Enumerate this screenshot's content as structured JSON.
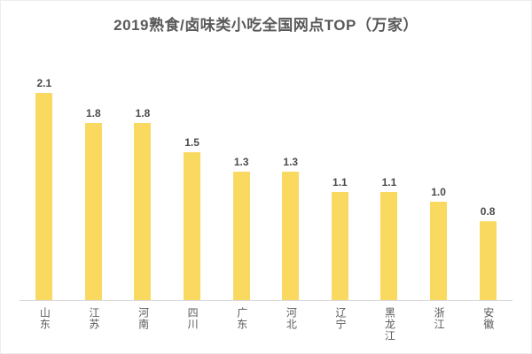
{
  "title": "2019熟食/卤味类小吃全国网点TOP（万家）",
  "colors": {
    "bar": "#FAD961",
    "title_text": "#595959",
    "value_label_text": "#4A4A4A",
    "category_label_text": "#595959",
    "axis_line": "#D9D9D9",
    "frame_border": "#EDEDED",
    "background": "#FFFFFF"
  },
  "chart_data": {
    "type": "bar",
    "title": "2019熟食/卤味类小吃全国网点TOP（万家）",
    "categories": [
      "山东",
      "江苏",
      "河南",
      "四川",
      "广东",
      "河北",
      "辽宁",
      "黑龙江",
      "浙江",
      "安徽"
    ],
    "values": [
      2.1,
      1.8,
      1.8,
      1.5,
      1.3,
      1.3,
      1.1,
      1.1,
      1.0,
      0.8
    ],
    "value_labels": [
      "2.1",
      "1.8",
      "1.8",
      "1.5",
      "1.3",
      "1.3",
      "1.1",
      "1.1",
      "1.0",
      "0.8"
    ],
    "xlabel": "",
    "ylabel": "",
    "ylim": [
      0,
      2.5
    ],
    "grid": false,
    "legend": false,
    "value_labels_shown": true,
    "category_label_orientation": "vertical"
  }
}
